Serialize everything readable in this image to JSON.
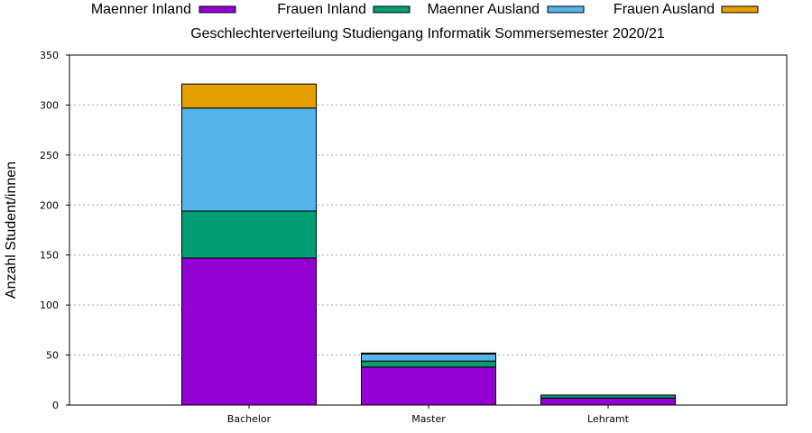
{
  "chart_data": {
    "type": "bar",
    "stacked": true,
    "title": "Geschlechterverteilung Studiengang Informatik Sommersemester 2020/21",
    "xlabel": "",
    "ylabel": "Anzahl Student/innen",
    "ylim": [
      0,
      350
    ],
    "yticks": [
      0,
      50,
      100,
      150,
      200,
      250,
      300,
      350
    ],
    "grid": true,
    "legend_position": "top",
    "categories": [
      "Bachelor",
      "Master",
      "Lehramt"
    ],
    "series": [
      {
        "name": "Maenner Inland",
        "color": "#9400d3",
        "values": [
          147,
          38,
          7
        ]
      },
      {
        "name": "Frauen Inland",
        "color": "#009e73",
        "values": [
          47,
          6,
          3
        ]
      },
      {
        "name": "Maenner Ausland",
        "color": "#56b4e9",
        "values": [
          103,
          7,
          0
        ]
      },
      {
        "name": "Frauen Ausland",
        "color": "#e69f00",
        "values": [
          24,
          1,
          0
        ]
      }
    ]
  }
}
